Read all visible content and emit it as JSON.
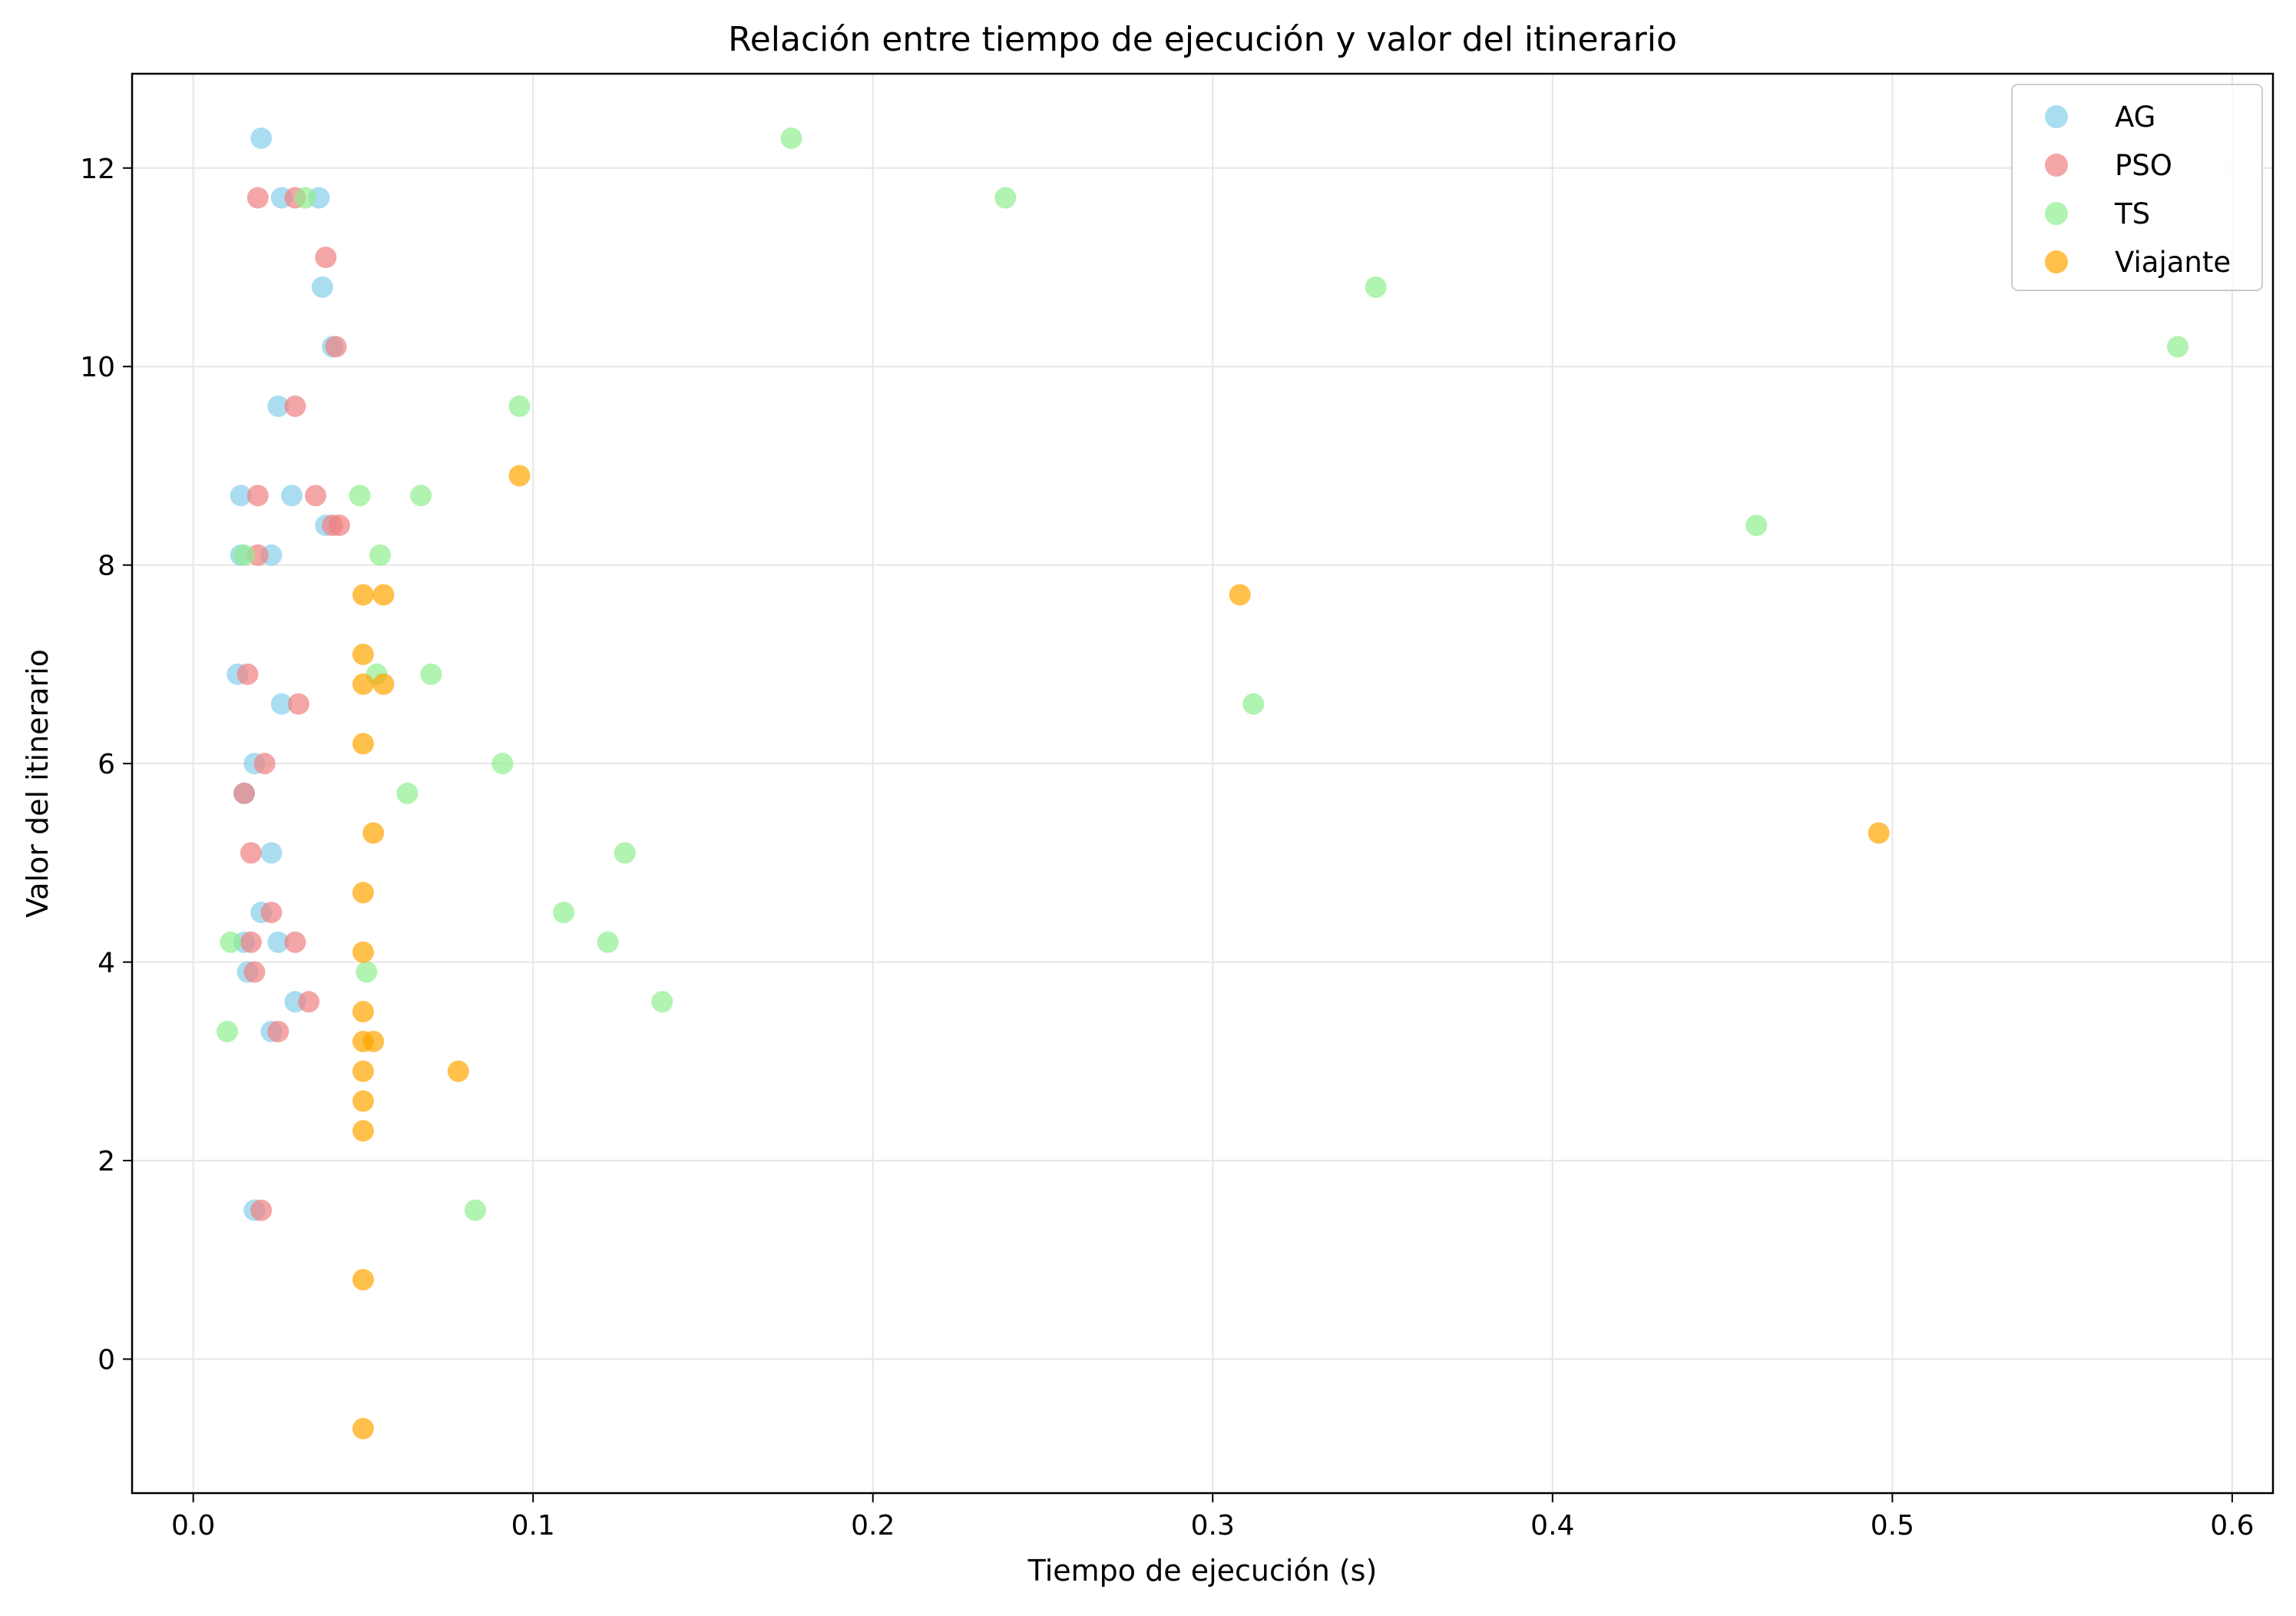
{
  "chart_data": {
    "type": "scatter",
    "title": "Relación entre tiempo de ejecución y valor del itinerario",
    "xlabel": "Tiempo de ejecución (s)",
    "ylabel": "Valor del itinerario",
    "xlim": [
      -0.018,
      0.612
    ],
    "ylim": [
      -1.35,
      12.95
    ],
    "xticks": [
      0.0,
      0.1,
      0.2,
      0.3,
      0.4,
      0.5,
      0.6
    ],
    "xtick_labels": [
      "0.0",
      "0.1",
      "0.2",
      "0.3",
      "0.4",
      "0.5",
      "0.6"
    ],
    "yticks": [
      0,
      2,
      4,
      6,
      8,
      10,
      12
    ],
    "ytick_labels": [
      "0",
      "2",
      "4",
      "6",
      "8",
      "10",
      "12"
    ],
    "grid": true,
    "legend_position": "top-right",
    "series": [
      {
        "name": "AG",
        "color": "#87ceeb",
        "points": [
          [
            0.02,
            12.3
          ],
          [
            0.026,
            11.7
          ],
          [
            0.037,
            11.7
          ],
          [
            0.038,
            10.8
          ],
          [
            0.041,
            10.2
          ],
          [
            0.025,
            9.6
          ],
          [
            0.014,
            8.7
          ],
          [
            0.029,
            8.7
          ],
          [
            0.039,
            8.4
          ],
          [
            0.014,
            8.1
          ],
          [
            0.023,
            8.1
          ],
          [
            0.013,
            6.9
          ],
          [
            0.026,
            6.6
          ],
          [
            0.018,
            6.0
          ],
          [
            0.015,
            5.7
          ],
          [
            0.023,
            5.1
          ],
          [
            0.02,
            4.5
          ],
          [
            0.015,
            4.2
          ],
          [
            0.025,
            4.2
          ],
          [
            0.016,
            3.9
          ],
          [
            0.03,
            3.6
          ],
          [
            0.023,
            3.3
          ],
          [
            0.018,
            1.5
          ]
        ]
      },
      {
        "name": "PSO",
        "color": "#f08080",
        "points": [
          [
            0.019,
            11.7
          ],
          [
            0.03,
            11.7
          ],
          [
            0.039,
            11.1
          ],
          [
            0.042,
            10.2
          ],
          [
            0.03,
            9.6
          ],
          [
            0.019,
            8.7
          ],
          [
            0.036,
            8.7
          ],
          [
            0.041,
            8.4
          ],
          [
            0.043,
            8.4
          ],
          [
            0.019,
            8.1
          ],
          [
            0.016,
            6.9
          ],
          [
            0.031,
            6.6
          ],
          [
            0.021,
            6.0
          ],
          [
            0.015,
            5.7
          ],
          [
            0.017,
            5.1
          ],
          [
            0.023,
            4.5
          ],
          [
            0.017,
            4.2
          ],
          [
            0.03,
            4.2
          ],
          [
            0.018,
            3.9
          ],
          [
            0.034,
            3.6
          ],
          [
            0.025,
            3.3
          ],
          [
            0.02,
            1.5
          ]
        ]
      },
      {
        "name": "TS",
        "color": "#90ee90",
        "points": [
          [
            0.176,
            12.3
          ],
          [
            0.239,
            11.7
          ],
          [
            0.033,
            11.7
          ],
          [
            0.348,
            10.8
          ],
          [
            0.584,
            10.2
          ],
          [
            0.096,
            9.6
          ],
          [
            0.049,
            8.7
          ],
          [
            0.067,
            8.7
          ],
          [
            0.46,
            8.4
          ],
          [
            0.015,
            8.1
          ],
          [
            0.055,
            8.1
          ],
          [
            0.054,
            6.9
          ],
          [
            0.07,
            6.9
          ],
          [
            0.312,
            6.6
          ],
          [
            0.091,
            6.0
          ],
          [
            0.063,
            5.7
          ],
          [
            0.127,
            5.1
          ],
          [
            0.109,
            4.5
          ],
          [
            0.011,
            4.2
          ],
          [
            0.122,
            4.2
          ],
          [
            0.051,
            3.9
          ],
          [
            0.138,
            3.6
          ],
          [
            0.01,
            3.3
          ],
          [
            0.083,
            1.5
          ]
        ]
      },
      {
        "name": "Viajante",
        "color": "#ffa500",
        "points": [
          [
            0.096,
            8.9
          ],
          [
            0.05,
            7.7
          ],
          [
            0.056,
            7.7
          ],
          [
            0.308,
            7.7
          ],
          [
            0.05,
            7.1
          ],
          [
            0.05,
            6.8
          ],
          [
            0.056,
            6.8
          ],
          [
            0.05,
            6.2
          ],
          [
            0.053,
            5.3
          ],
          [
            0.496,
            5.3
          ],
          [
            0.05,
            4.7
          ],
          [
            0.05,
            4.1
          ],
          [
            0.05,
            3.5
          ],
          [
            0.05,
            3.2
          ],
          [
            0.053,
            3.2
          ],
          [
            0.05,
            2.9
          ],
          [
            0.078,
            2.9
          ],
          [
            0.05,
            2.6
          ],
          [
            0.05,
            2.3
          ],
          [
            0.05,
            0.8
          ],
          [
            0.05,
            -0.7
          ]
        ]
      }
    ]
  }
}
